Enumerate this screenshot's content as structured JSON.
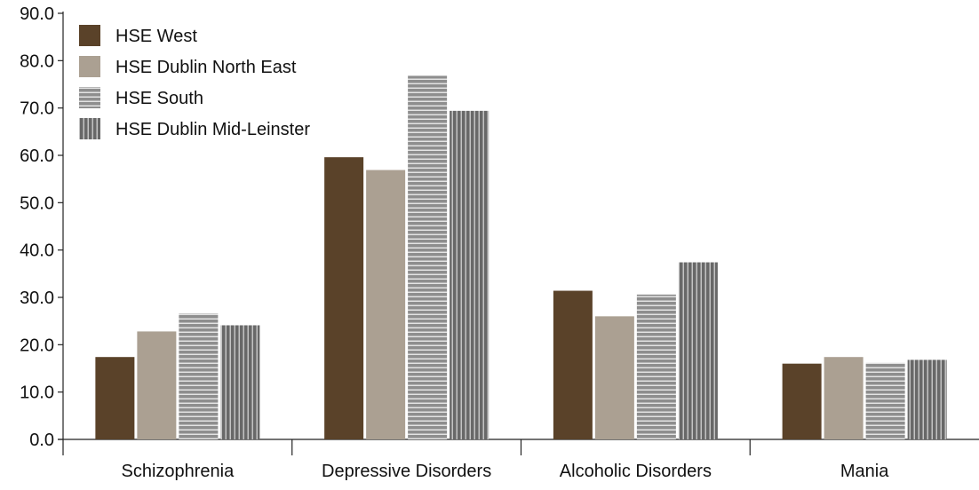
{
  "chart_data": {
    "type": "bar",
    "categories": [
      "Schizophrenia",
      "Depressive Disorders",
      "Alcoholic Disorders",
      "Mania"
    ],
    "series": [
      {
        "name": "HSE West",
        "values": [
          17.4,
          59.6,
          31.4,
          16.0
        ],
        "color": "#5a4229",
        "pattern": "solid"
      },
      {
        "name": "HSE Dublin North East",
        "values": [
          22.8,
          56.9,
          26.0,
          17.4
        ],
        "color": "#aba092",
        "pattern": "solid"
      },
      {
        "name": "HSE South",
        "values": [
          26.6,
          76.8,
          30.6,
          16.2
        ],
        "color": "#8e8e8e",
        "pattern": "horizontal-stripes"
      },
      {
        "name": "HSE Dublin Mid-Leinster",
        "values": [
          24.1,
          69.4,
          37.4,
          16.8
        ],
        "color": "#686868",
        "pattern": "vertical-stripes"
      }
    ],
    "yticks": [
      "0.0",
      "10.0",
      "20.0",
      "30.0",
      "40.0",
      "50.0",
      "60.0",
      "70.0",
      "80.0",
      "90.0"
    ],
    "ylim": [
      0,
      90
    ],
    "grid": false,
    "legend_position": "top-left"
  }
}
